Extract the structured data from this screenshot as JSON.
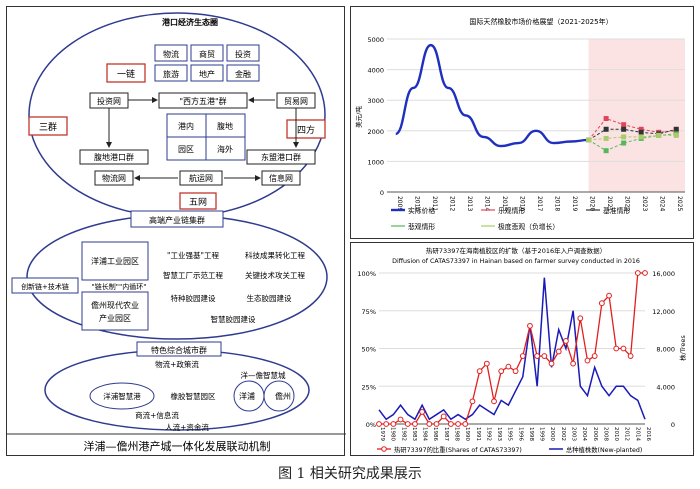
{
  "diagram": {
    "footer": "洋浦—儋州港产城一体化发展联动机制",
    "port_circle": {
      "title": "港口经济生态圈",
      "top_grid": [
        [
          "物流",
          "商贸",
          "投资"
        ],
        [
          "旅游",
          "地产",
          "金融"
        ]
      ],
      "yilian": "一链",
      "xiyuan": "\"西方五港\"群",
      "touzi": "投资网",
      "maoyi": "贸易网",
      "sanqun": "三群",
      "sifang": "四方",
      "center_grid": [
        [
          "港内",
          "腹地"
        ],
        [
          "园区",
          "海外"
        ]
      ],
      "fudi": "腹地港口群",
      "dongjian": "东盟港口群",
      "wuliu": "物流网",
      "hangyun": "航运网",
      "xinxi": "信息网",
      "wuwang": "五网"
    },
    "industry": {
      "title": "高端产业链集群",
      "park1": "洋浦工业园区",
      "park2": "儋州现代农业产业园区",
      "left_label": "创新链+技术链",
      "mid_label": "\"链长制\"\"内循环\"",
      "items": [
        "\"工业强基\"工程",
        "科技成果转化工程",
        "智慧工厂示范工程",
        "关键技术攻关工程",
        "特种胶园建设",
        "生态胶园建设",
        "智慧胶园建设"
      ]
    },
    "city": {
      "title": "特色综合城市群",
      "top_flow": "物流+政策流",
      "mid_right": "洋—儋智慧城",
      "left": "洋浦智慧港",
      "center": "橡胶智慧园区",
      "right1": "洋浦",
      "right2": "儋州",
      "flow2": "商流+信息流",
      "flow3": "人流+资金流"
    }
  },
  "chart_data": [
    {
      "type": "line",
      "title": "国际天然橡胶市场价格展望（2021-2025年）",
      "ylabel": "美元/吨",
      "ylim": [
        0,
        5000
      ],
      "yticks": [
        0,
        1000,
        2000,
        3000,
        4000,
        5000
      ],
      "categories": [
        "2009",
        "2010",
        "2011",
        "2012",
        "2013",
        "2014",
        "2015",
        "2016",
        "2017",
        "2018",
        "2019",
        "2020",
        "2021",
        "2022",
        "2023",
        "2024",
        "2025"
      ],
      "shaded_from": "2020",
      "series": [
        {
          "name": "实际价格",
          "color": "#1f2fbf",
          "values": [
            1900,
            3400,
            4800,
            3400,
            2500,
            1800,
            1500,
            1600,
            2000,
            1600,
            1650,
            1700,
            null,
            null,
            null,
            null,
            null
          ]
        },
        {
          "name": "乐观情形",
          "color": "#e0455a",
          "values": [
            null,
            null,
            null,
            null,
            null,
            null,
            null,
            null,
            null,
            null,
            null,
            1700,
            2400,
            2200,
            2050,
            1950,
            2000
          ]
        },
        {
          "name": "基准情形",
          "color": "#333333",
          "values": [
            null,
            null,
            null,
            null,
            null,
            null,
            null,
            null,
            null,
            null,
            null,
            1700,
            2050,
            2050,
            1950,
            1900,
            2050
          ]
        },
        {
          "name": "悲观情形",
          "color": "#56b85c",
          "values": [
            null,
            null,
            null,
            null,
            null,
            null,
            null,
            null,
            null,
            null,
            null,
            1700,
            1350,
            1600,
            1750,
            1850,
            1900
          ]
        },
        {
          "name": "极度悲观（负增长）",
          "color": "#aacb6a",
          "values": [
            null,
            null,
            null,
            null,
            null,
            null,
            null,
            null,
            null,
            null,
            null,
            1700,
            1750,
            1800,
            1800,
            1850,
            1850
          ]
        }
      ]
    },
    {
      "type": "line",
      "title": "热研73397在海南植胶区的扩散（基于2016年入户调查数据）",
      "subtitle": "Diffusion of CATAS73397 in Hainan based on farmer survey conducted in 2016",
      "ylabel_right": "株/Trees",
      "ylim_left": [
        0,
        100
      ],
      "yticks_left": [
        "0%",
        "25%",
        "50%",
        "75%",
        "100%"
      ],
      "ylim_right": [
        0,
        16000
      ],
      "yticks_right": [
        "0",
        "4,000",
        "8,000",
        "12,000",
        "16,000"
      ],
      "categories": [
        "1979",
        "1980",
        "1981",
        "1982",
        "1983",
        "1984",
        "1985",
        "1986",
        "1987",
        "1988",
        "1989",
        "1990",
        "1991",
        "1992",
        "1993",
        "1994",
        "1995",
        "1996",
        "1997",
        "1998",
        "1999",
        "2000",
        "2001",
        "2002",
        "2003",
        "2004",
        "2005",
        "2006",
        "2007",
        "2008",
        "2009",
        "2010",
        "2011",
        "2012",
        "2013",
        "2014",
        "2015",
        "2016"
      ],
      "xtick_labels": [
        "1979",
        "1980",
        "1982",
        "1983",
        "1984",
        "1986",
        "1987",
        "1988",
        "1990",
        "1991",
        "1992",
        "1993",
        "1995",
        "1996",
        "1998",
        "1999",
        "2000",
        "2002",
        "2003",
        "2004",
        "2006",
        "2008",
        "2010",
        "2012",
        "2014",
        "2016"
      ],
      "series": [
        {
          "name": "热研73397的比重(Shares of CATAS73397)",
          "color": "#e02020",
          "axis": "left",
          "values": [
            0,
            0,
            0,
            3,
            0,
            0,
            8,
            0,
            0,
            5,
            0,
            0,
            0,
            15,
            35,
            40,
            15,
            35,
            38,
            35,
            45,
            65,
            45,
            45,
            40,
            48,
            55,
            40,
            70,
            42,
            45,
            80,
            85,
            50,
            50,
            45,
            100,
            100
          ]
        },
        {
          "name": "总种植株数(New-planted)",
          "color": "#1a1ab8",
          "axis": "right",
          "values": [
            1500,
            500,
            1000,
            2000,
            1000,
            500,
            2000,
            500,
            1000,
            1500,
            500,
            1000,
            500,
            1000,
            2000,
            1500,
            1000,
            2500,
            2000,
            3500,
            5000,
            10500,
            4000,
            15500,
            6000,
            10000,
            8000,
            12000,
            4000,
            3000,
            6000,
            4000,
            3000,
            4000,
            4000,
            3000,
            2500,
            500
          ]
        }
      ]
    }
  ],
  "caption": "图 1    相关研究成果展示"
}
